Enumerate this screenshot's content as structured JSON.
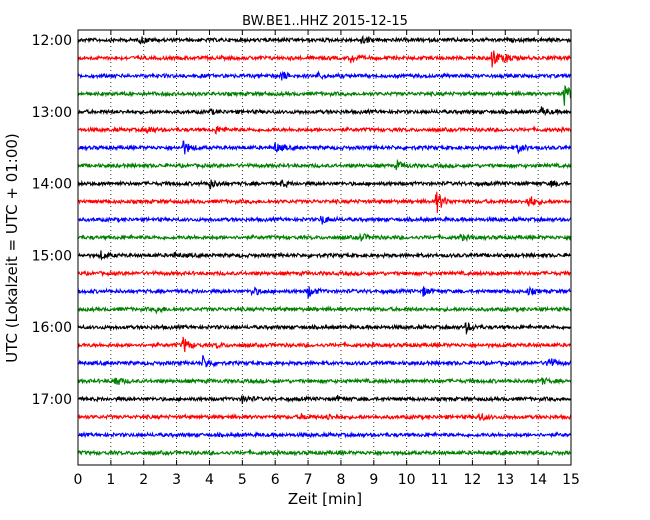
{
  "chart_data": {
    "type": "line",
    "title": "BW.BE1..HHZ 2015-12-15",
    "xlabel": "Zeit  [min]",
    "ylabel": "UTC (Lokalzeit = UTC + 01:00)",
    "xlim": [
      0,
      15
    ],
    "x_ticks": [
      "0",
      "1",
      "2",
      "3",
      "4",
      "5",
      "6",
      "7",
      "8",
      "9",
      "10",
      "11",
      "12",
      "13",
      "14",
      "15"
    ],
    "y_ticks": [
      "12:00",
      "13:00",
      "14:00",
      "15:00",
      "16:00",
      "17:00"
    ],
    "row_interval_min": 15,
    "start_time": "12:00",
    "grid": true,
    "colors": [
      "#000000",
      "#ff0000",
      "#0000ff",
      "#008000"
    ],
    "series": [
      {
        "start": "12:00",
        "color": "#000000",
        "events": [
          [
            1.9,
            0.5
          ],
          [
            8.6,
            0.6
          ]
        ]
      },
      {
        "start": "12:15",
        "color": "#ff0000",
        "events": [
          [
            8.3,
            0.6
          ],
          [
            12.6,
            1.4
          ],
          [
            13.0,
            0.5
          ]
        ]
      },
      {
        "start": "12:30",
        "color": "#0000ff",
        "events": [
          [
            6.2,
            0.6
          ],
          [
            7.3,
            0.4
          ]
        ]
      },
      {
        "start": "12:45",
        "color": "#008000",
        "events": [
          [
            14.8,
            1.6
          ]
        ]
      },
      {
        "start": "13:00",
        "color": "#000000",
        "events": [
          [
            4.0,
            0.3
          ],
          [
            14.1,
            0.5
          ]
        ]
      },
      {
        "start": "13:15",
        "color": "#ff0000",
        "events": [
          [
            2.1,
            0.5
          ],
          [
            4.2,
            0.5
          ]
        ]
      },
      {
        "start": "13:30",
        "color": "#0000ff",
        "events": [
          [
            3.2,
            1.0
          ],
          [
            6.0,
            0.7
          ],
          [
            13.4,
            0.6
          ]
        ]
      },
      {
        "start": "13:45",
        "color": "#008000",
        "events": [
          [
            9.7,
            0.6
          ]
        ]
      },
      {
        "start": "14:00",
        "color": "#000000",
        "events": [
          [
            4.0,
            0.7
          ],
          [
            6.2,
            0.4
          ],
          [
            14.4,
            0.4
          ]
        ]
      },
      {
        "start": "14:15",
        "color": "#ff0000",
        "events": [
          [
            10.9,
            1.7
          ],
          [
            13.7,
            1.0
          ]
        ]
      },
      {
        "start": "14:30",
        "color": "#0000ff",
        "events": [
          [
            7.4,
            0.7
          ]
        ]
      },
      {
        "start": "14:45",
        "color": "#008000",
        "events": [
          [
            8.6,
            0.5
          ],
          [
            11.6,
            0.4
          ]
        ]
      },
      {
        "start": "15:00",
        "color": "#000000",
        "events": [
          [
            0.7,
            0.5
          ],
          [
            2.9,
            0.3
          ]
        ]
      },
      {
        "start": "15:15",
        "color": "#ff0000",
        "events": []
      },
      {
        "start": "15:30",
        "color": "#0000ff",
        "events": [
          [
            5.3,
            0.6
          ],
          [
            7.0,
            0.8
          ],
          [
            10.5,
            0.6
          ],
          [
            13.7,
            0.4
          ]
        ]
      },
      {
        "start": "15:45",
        "color": "#008000",
        "events": [
          [
            2.4,
            0.4
          ]
        ]
      },
      {
        "start": "16:00",
        "color": "#000000",
        "events": [
          [
            11.8,
            0.7
          ]
        ]
      },
      {
        "start": "16:15",
        "color": "#ff0000",
        "events": [
          [
            3.2,
            1.1
          ],
          [
            4.2,
            0.3
          ]
        ]
      },
      {
        "start": "16:30",
        "color": "#0000ff",
        "events": [
          [
            3.8,
            0.9
          ],
          [
            14.3,
            1.0
          ]
        ]
      },
      {
        "start": "16:45",
        "color": "#008000",
        "events": [
          [
            1.1,
            0.8
          ],
          [
            14.1,
            0.4
          ]
        ]
      },
      {
        "start": "17:00",
        "color": "#000000",
        "events": [
          [
            5.0,
            0.5
          ],
          [
            7.9,
            0.3
          ]
        ]
      },
      {
        "start": "17:15",
        "color": "#ff0000",
        "events": [
          [
            6.8,
            0.3
          ],
          [
            7.6,
            0.4
          ],
          [
            12.2,
            0.6
          ]
        ]
      },
      {
        "start": "17:30",
        "color": "#0000ff",
        "events": []
      },
      {
        "start": "17:45",
        "color": "#008000",
        "events": []
      }
    ]
  }
}
